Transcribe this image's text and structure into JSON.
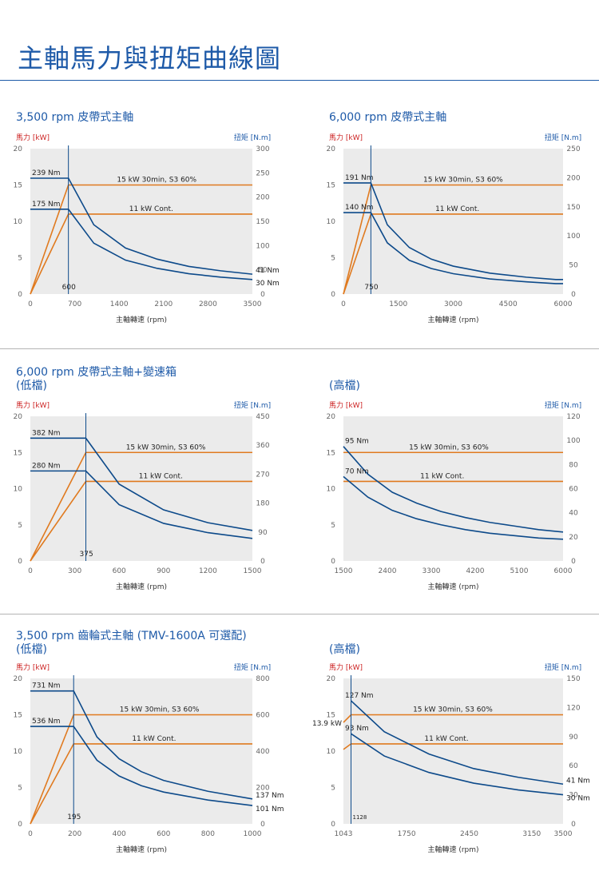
{
  "page_title": "主軸馬力與扭矩曲線圖",
  "sections": [
    {
      "title": "3,500 rpm 皮帶式主軸",
      "subtitle": ""
    },
    {
      "title": "6,000 rpm 皮帶式主軸",
      "subtitle": ""
    },
    {
      "title": "6,000 rpm 皮帶式主軸+變速箱",
      "subtitle": "(低檔)"
    },
    {
      "title": "",
      "subtitle": "(高檔)"
    },
    {
      "title": "3,500 rpm 齒輪式主軸 (TMV-1600A 可選配)",
      "subtitle": "(低檔)"
    },
    {
      "title": "",
      "subtitle": "(高檔)"
    }
  ],
  "colors": {
    "title": "#1e5aa8",
    "power_axis": "#cc2222",
    "torque_axis": "#1e5aa8",
    "power_curve": "#e07a1f",
    "torque_curve": "#0d4a8a",
    "plot_bg": "#ebebeb"
  },
  "chart_data": [
    {
      "type": "line",
      "left_axis_label": "馬力 [kW]",
      "right_axis_label": "扭矩 [N.m]",
      "xlabel": "主軸轉速 (rpm)",
      "xlim": [
        0,
        3500
      ],
      "ylim_power": [
        0,
        20
      ],
      "ylim_torque": [
        0,
        300
      ],
      "xticks": [
        "0",
        "700",
        "1400",
        "2100",
        "2800",
        "3500"
      ],
      "yticks_left": [
        "0",
        "5",
        "10",
        "15",
        "20"
      ],
      "yticks_right": [
        "0",
        "50",
        "100",
        "150",
        "200",
        "250",
        "300"
      ],
      "base_speed": 600,
      "base_speed_label": "600",
      "power_lines": [
        {
          "label": "15  kW 30min, S3 60%",
          "kw": 15
        },
        {
          "label": "11 kW Cont.",
          "kw": 11
        }
      ],
      "torque_curves": [
        {
          "peak_label": "239 Nm",
          "end_label": "41 Nm",
          "x": [
            0,
            600,
            1000,
            1500,
            2000,
            2500,
            3000,
            3500
          ],
          "y": [
            239,
            239,
            143,
            95,
            72,
            57,
            48,
            41
          ]
        },
        {
          "peak_label": "175 Nm",
          "end_label": "30 Nm",
          "x": [
            0,
            600,
            1000,
            1500,
            2000,
            2500,
            3000,
            3500
          ],
          "y": [
            175,
            175,
            105,
            70,
            53,
            42,
            35,
            30
          ]
        }
      ]
    },
    {
      "type": "line",
      "left_axis_label": "馬力 [kW]",
      "right_axis_label": "扭矩 [N.m]",
      "xlabel": "主軸轉速 (rpm)",
      "xlim": [
        0,
        6000
      ],
      "ylim_power": [
        0,
        20
      ],
      "ylim_torque": [
        0,
        250
      ],
      "xticks": [
        "0",
        "1500",
        "3000",
        "4500",
        "6000"
      ],
      "yticks_left": [
        "0",
        "5",
        "10",
        "15",
        "20"
      ],
      "yticks_right": [
        "0",
        "50",
        "100",
        "150",
        "200",
        "250"
      ],
      "base_speed": 750,
      "base_speed_label": "750",
      "power_lines": [
        {
          "label": "15  kW 30min, S3 60%",
          "kw": 15
        },
        {
          "label": "11 kW Cont.",
          "kw": 11
        }
      ],
      "torque_curves": [
        {
          "peak_label": "191 Nm",
          "end_label": "",
          "x": [
            0,
            750,
            1200,
            1800,
            2400,
            3000,
            4000,
            5000,
            5800,
            6000
          ],
          "y": [
            191,
            191,
            119,
            80,
            60,
            48,
            36,
            29,
            25,
            25
          ]
        },
        {
          "peak_label": "140 Nm",
          "end_label": "",
          "x": [
            0,
            750,
            1200,
            1800,
            2400,
            3000,
            4000,
            5000,
            5800,
            6000
          ],
          "y": [
            140,
            140,
            88,
            58,
            44,
            35,
            26,
            21,
            18,
            18
          ]
        }
      ]
    },
    {
      "type": "line",
      "left_axis_label": "馬力 [kW]",
      "right_axis_label": "扭矩 [N.m]",
      "xlabel": "主軸轉速 (rpm)",
      "xlim": [
        0,
        1500
      ],
      "ylim_power": [
        0,
        20
      ],
      "ylim_torque": [
        0,
        450
      ],
      "xticks": [
        "0",
        "300",
        "600",
        "900",
        "1200",
        "1500"
      ],
      "yticks_left": [
        "0",
        "5",
        "10",
        "15",
        "20"
      ],
      "yticks_right": [
        "0",
        "90",
        "180",
        "270",
        "360",
        "450"
      ],
      "base_speed": 375,
      "base_speed_label": "375",
      "power_lines": [
        {
          "label": "15  kW 30min, S3 60%",
          "kw": 15
        },
        {
          "label": "11 kW Cont.",
          "kw": 11
        }
      ],
      "torque_curves": [
        {
          "peak_label": "382 Nm",
          "end_label": "",
          "x": [
            0,
            375,
            600,
            900,
            1200,
            1500
          ],
          "y": [
            382,
            382,
            239,
            159,
            119,
            95
          ]
        },
        {
          "peak_label": "280 Nm",
          "end_label": "",
          "x": [
            0,
            375,
            600,
            900,
            1200,
            1500
          ],
          "y": [
            280,
            280,
            175,
            117,
            88,
            70
          ]
        }
      ]
    },
    {
      "type": "line",
      "left_axis_label": "馬力 [kW]",
      "right_axis_label": "扭矩 [N.m]",
      "xlabel": "主軸轉速 (rpm)",
      "xlim": [
        1500,
        6000
      ],
      "ylim_power": [
        0,
        20
      ],
      "ylim_torque": [
        0,
        120
      ],
      "xticks": [
        "1500",
        "2400",
        "3300",
        "4200",
        "5100",
        "6000"
      ],
      "yticks_left": [
        "0",
        "5",
        "10",
        "15",
        "20"
      ],
      "yticks_right": [
        "0",
        "20",
        "40",
        "60",
        "80",
        "100",
        "120"
      ],
      "power_lines": [
        {
          "label": "15  kW 30min, S3 60%",
          "kw": 15
        },
        {
          "label": "11 kW Cont.",
          "kw": 11
        }
      ],
      "torque_curves": [
        {
          "peak_label": "95 Nm",
          "end_label": "",
          "x": [
            1500,
            2000,
            2500,
            3000,
            3500,
            4000,
            4500,
            5000,
            5500,
            6000
          ],
          "y": [
            95,
            72,
            57,
            48,
            41,
            36,
            32,
            29,
            26,
            24
          ]
        },
        {
          "peak_label": "70 Nm",
          "end_label": "",
          "x": [
            1500,
            2000,
            2500,
            3000,
            3500,
            4000,
            4500,
            5000,
            5500,
            6000
          ],
          "y": [
            70,
            53,
            42,
            35,
            30,
            26,
            23,
            21,
            19,
            18
          ]
        }
      ]
    },
    {
      "type": "line",
      "left_axis_label": "馬力 [kW]",
      "right_axis_label": "扭矩 [N.m]",
      "xlabel": "主軸轉速 (rpm)",
      "xlim": [
        0,
        1000
      ],
      "ylim_power": [
        0,
        20
      ],
      "ylim_torque": [
        0,
        800
      ],
      "xticks": [
        "0",
        "200",
        "400",
        "600",
        "800",
        "1000"
      ],
      "yticks_left": [
        "0",
        "5",
        "10",
        "15",
        "20"
      ],
      "yticks_right": [
        "0",
        "200",
        "400",
        "600",
        "800"
      ],
      "base_speed": 195,
      "base_speed_label": "195",
      "power_lines": [
        {
          "label": "15  kW 30min, S3 60%",
          "kw": 15
        },
        {
          "label": "11 kW Cont.",
          "kw": 11
        }
      ],
      "torque_curves": [
        {
          "peak_label": "731 Nm",
          "end_label": "137 Nm",
          "x": [
            0,
            195,
            300,
            400,
            500,
            600,
            800,
            1000
          ],
          "y": [
            731,
            731,
            478,
            358,
            287,
            239,
            179,
            137
          ]
        },
        {
          "peak_label": "536 Nm",
          "end_label": "101 Nm",
          "x": [
            0,
            195,
            300,
            400,
            500,
            600,
            800,
            1000
          ],
          "y": [
            536,
            536,
            350,
            263,
            210,
            175,
            131,
            101
          ]
        }
      ]
    },
    {
      "type": "line",
      "left_axis_label": "馬力 [kW]",
      "right_axis_label": "扭矩 [N.m]",
      "xlabel": "主軸轉速 (rpm)",
      "xlim": [
        1043,
        3500
      ],
      "ylim_power": [
        0,
        20
      ],
      "ylim_torque": [
        0,
        150
      ],
      "xticks": [
        "1043",
        "1750",
        "2450",
        "3150",
        "3500"
      ],
      "yticks_left": [
        "0",
        "5",
        "10",
        "15",
        "20"
      ],
      "yticks_right": [
        "0",
        "30",
        "60",
        "90",
        "120",
        "150"
      ],
      "base_speed": 1128,
      "base_speed_label": "1128",
      "power_start_label": "13.9 kW",
      "power_lines": [
        {
          "label": "15  kW 30min, S3 60%",
          "kw": 15
        },
        {
          "label": "11 kW Cont.",
          "kw": 11
        }
      ],
      "torque_curves": [
        {
          "peak_label": "127 Nm",
          "end_label": "41 Nm",
          "x": [
            1128,
            1500,
            2000,
            2500,
            3000,
            3500
          ],
          "y": [
            127,
            95,
            72,
            57,
            48,
            41
          ]
        },
        {
          "peak_label": "93 Nm",
          "end_label": "30 Nm",
          "x": [
            1128,
            1500,
            2000,
            2500,
            3000,
            3500
          ],
          "y": [
            93,
            70,
            53,
            42,
            35,
            30
          ]
        }
      ]
    }
  ]
}
